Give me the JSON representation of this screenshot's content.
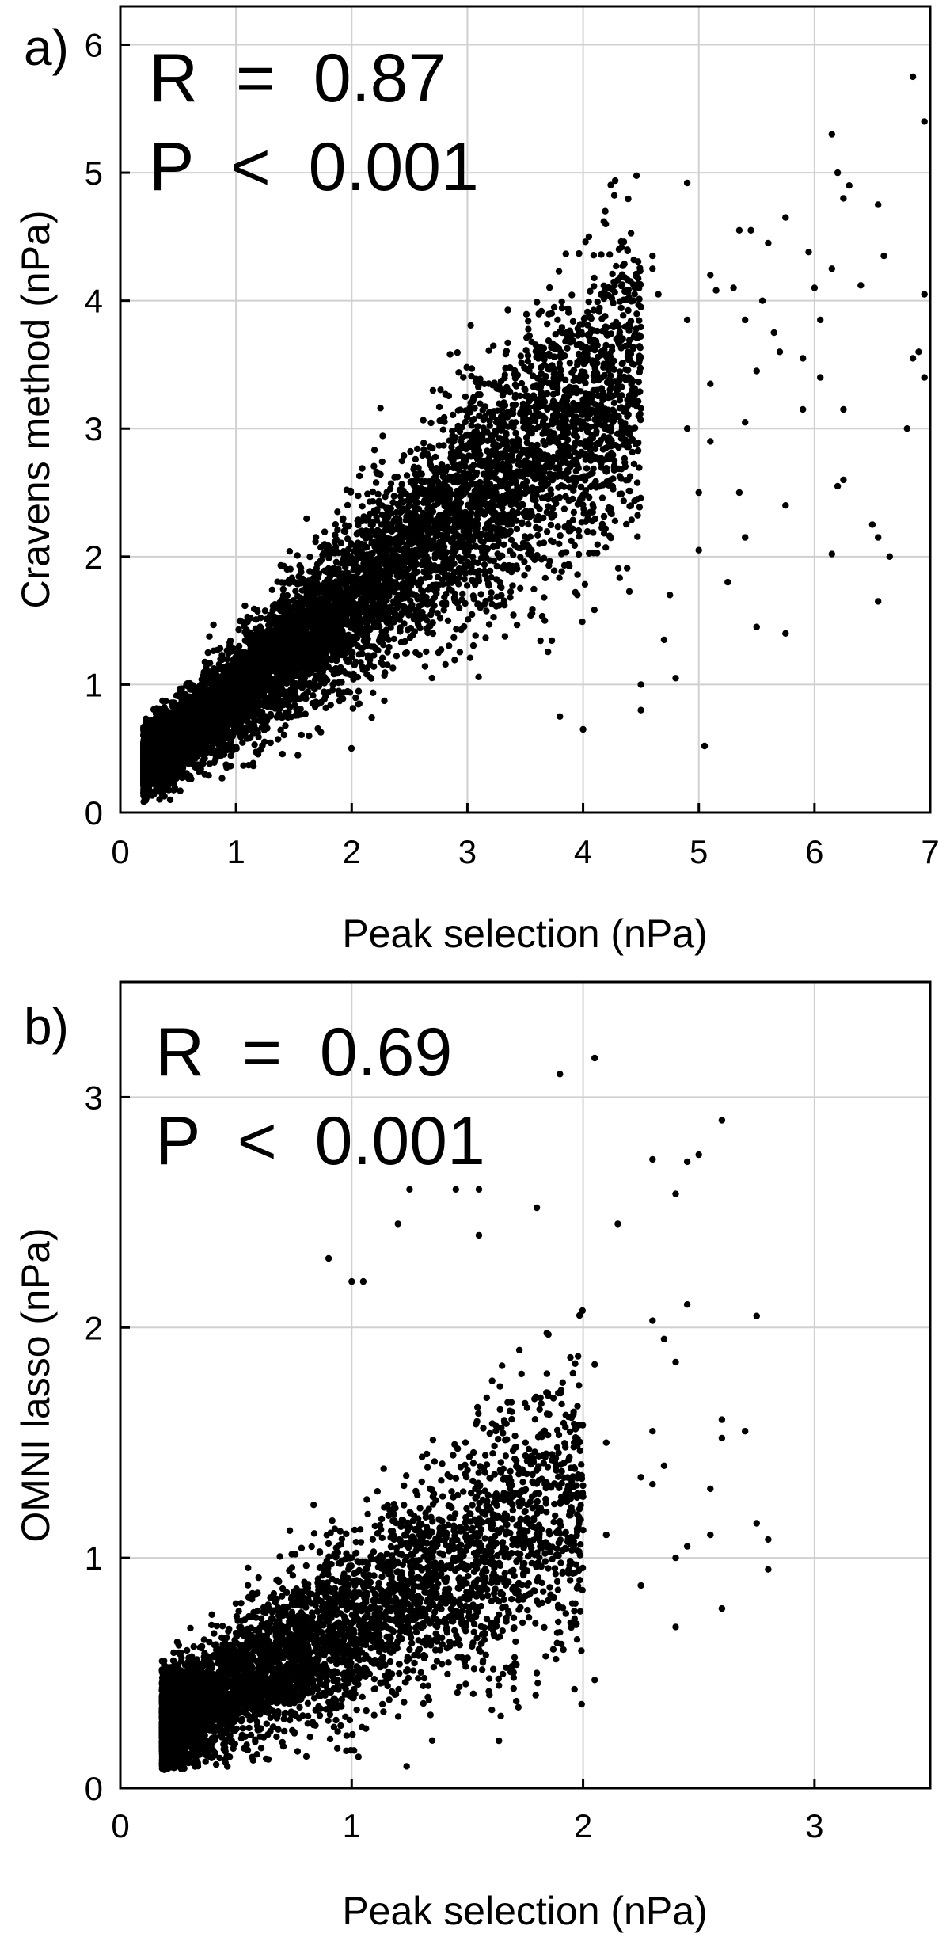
{
  "chart_data": [
    {
      "type": "scatter",
      "panel_label": "a)",
      "stats": [
        "R  =  0.87",
        "P  <  0.001"
      ],
      "xlabel": "Peak selection (nPa)",
      "ylabel": "Cravens method (nPa)",
      "xlim": [
        0,
        7
      ],
      "ylim": [
        0,
        6.3
      ],
      "xticks": [
        0,
        1,
        2,
        3,
        4,
        5,
        6,
        7
      ],
      "yticks": [
        0,
        1,
        2,
        3,
        4,
        5,
        6
      ],
      "grid": true,
      "marker_color": "#000000",
      "points": [
        [
          6.85,
          5.75
        ],
        [
          6.95,
          5.4
        ],
        [
          6.15,
          5.3
        ],
        [
          6.2,
          5.0
        ],
        [
          6.3,
          4.9
        ],
        [
          6.25,
          4.8
        ],
        [
          4.9,
          4.92
        ],
        [
          5.35,
          4.55
        ],
        [
          5.45,
          4.55
        ],
        [
          5.6,
          4.45
        ],
        [
          5.75,
          4.65
        ],
        [
          5.95,
          4.38
        ],
        [
          6.55,
          4.75
        ],
        [
          4.05,
          4.5
        ],
        [
          4.6,
          4.35
        ],
        [
          4.6,
          4.25
        ],
        [
          4.65,
          4.05
        ],
        [
          5.1,
          4.2
        ],
        [
          5.15,
          4.08
        ],
        [
          5.3,
          4.1
        ],
        [
          5.55,
          4.0
        ],
        [
          6.0,
          4.1
        ],
        [
          6.15,
          4.25
        ],
        [
          6.4,
          4.12
        ],
        [
          6.6,
          4.35
        ],
        [
          6.95,
          4.05
        ],
        [
          4.5,
          3.95
        ],
        [
          4.9,
          3.85
        ],
        [
          5.4,
          3.85
        ],
        [
          5.65,
          3.75
        ],
        [
          5.7,
          3.6
        ],
        [
          5.9,
          3.55
        ],
        [
          6.05,
          3.85
        ],
        [
          6.9,
          3.6
        ],
        [
          6.85,
          3.55
        ],
        [
          6.95,
          3.4
        ],
        [
          5.1,
          3.35
        ],
        [
          5.5,
          3.45
        ],
        [
          6.05,
          3.4
        ],
        [
          6.25,
          3.15
        ],
        [
          6.8,
          3.0
        ],
        [
          5.9,
          3.15
        ],
        [
          4.9,
          3.0
        ],
        [
          5.1,
          2.9
        ],
        [
          5.4,
          3.05
        ],
        [
          6.2,
          2.55
        ],
        [
          6.25,
          2.6
        ],
        [
          5.0,
          2.5
        ],
        [
          5.35,
          2.5
        ],
        [
          5.75,
          2.4
        ],
        [
          6.5,
          2.25
        ],
        [
          6.55,
          2.15
        ],
        [
          6.65,
          2.0
        ],
        [
          6.15,
          2.02
        ],
        [
          5.4,
          2.15
        ],
        [
          5.0,
          2.05
        ],
        [
          4.75,
          1.7
        ],
        [
          5.25,
          1.8
        ],
        [
          5.5,
          1.45
        ],
        [
          5.75,
          1.4
        ],
        [
          6.55,
          1.65
        ],
        [
          4.7,
          1.35
        ],
        [
          4.5,
          1.0
        ],
        [
          4.8,
          1.05
        ],
        [
          4.5,
          0.8
        ],
        [
          5.05,
          0.52
        ],
        [
          4.0,
          0.65
        ],
        [
          3.8,
          0.75
        ]
      ],
      "dense_cloud": {
        "x_start": 0.2,
        "x_end": 4.5,
        "slope": 0.72,
        "intercept": 0.22,
        "count": 9000
      }
    },
    {
      "type": "scatter",
      "panel_label": "b)",
      "stats": [
        "R  =  0.69",
        "P  <  0.001"
      ],
      "xlabel": "Peak selection (nPa)",
      "ylabel": "OMNI lasso (nPa)",
      "xlim": [
        0,
        3.5
      ],
      "ylim": [
        0,
        3.5
      ],
      "xticks": [
        0,
        1,
        2,
        3
      ],
      "yticks": [
        0,
        1,
        2,
        3
      ],
      "grid": true,
      "marker_color": "#000000",
      "points": [
        [
          2.05,
          3.17
        ],
        [
          1.9,
          3.1
        ],
        [
          2.6,
          2.9
        ],
        [
          2.5,
          2.75
        ],
        [
          2.45,
          2.72
        ],
        [
          2.4,
          2.58
        ],
        [
          2.3,
          2.73
        ],
        [
          1.25,
          2.6
        ],
        [
          1.45,
          2.6
        ],
        [
          1.55,
          2.6
        ],
        [
          1.8,
          2.52
        ],
        [
          2.15,
          2.45
        ],
        [
          1.2,
          2.45
        ],
        [
          0.9,
          2.3
        ],
        [
          1.55,
          2.4
        ],
        [
          1.0,
          2.2
        ],
        [
          1.05,
          2.2
        ],
        [
          2.3,
          2.03
        ],
        [
          2.35,
          1.95
        ],
        [
          2.45,
          2.1
        ],
        [
          2.75,
          2.05
        ],
        [
          2.4,
          1.85
        ],
        [
          2.05,
          1.84
        ],
        [
          1.85,
          1.97
        ],
        [
          2.6,
          1.6
        ],
        [
          2.7,
          1.55
        ],
        [
          2.6,
          1.52
        ],
        [
          2.55,
          1.3
        ],
        [
          2.55,
          1.1
        ],
        [
          2.45,
          1.05
        ],
        [
          2.4,
          1.0
        ],
        [
          2.25,
          0.88
        ],
        [
          2.4,
          0.7
        ],
        [
          2.6,
          0.78
        ],
        [
          2.75,
          1.15
        ],
        [
          2.8,
          1.08
        ],
        [
          2.8,
          0.95
        ],
        [
          2.3,
          1.32
        ],
        [
          2.3,
          1.55
        ],
        [
          2.0,
          1.12
        ],
        [
          2.1,
          1.1
        ],
        [
          2.05,
          0.47
        ],
        [
          1.8,
          0.5
        ],
        [
          1.7,
          0.48
        ],
        [
          2.25,
          1.35
        ],
        [
          2.1,
          1.5
        ],
        [
          2.35,
          1.4
        ]
      ],
      "dense_cloud": {
        "x_start": 0.18,
        "x_end": 2.0,
        "slope": 0.55,
        "intercept": 0.17,
        "count": 5000
      }
    }
  ]
}
